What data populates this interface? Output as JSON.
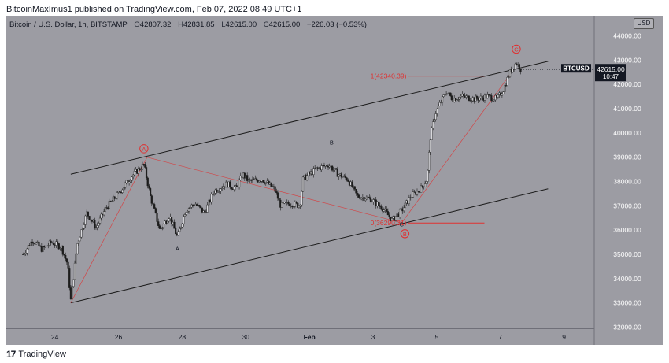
{
  "header": {
    "publisher_line": "BitcoinMaxImus1 published on TradingView.com, Feb 07, 2022 08:49 UTC+1"
  },
  "legend": {
    "symbol": "Bitcoin / U.S. Dollar, 1h, BITSTAMP",
    "open_label": "O",
    "open": "42807.32",
    "high_label": "H",
    "high": "42831.85",
    "low_label": "L",
    "low": "42615.00",
    "close_label": "C",
    "close": "42615.00",
    "change": "−226.03 (−0.53%)"
  },
  "currency": "USD",
  "price_tag": {
    "symbol": "BTCUSD",
    "price": "42615.00",
    "countdown": "10:47"
  },
  "footer": {
    "brand": "TradingView",
    "logo": "17"
  },
  "colors": {
    "background": "#9c9ca3",
    "candle": "#1c1c1c",
    "fib": "#e03030",
    "channel": "#1c1c1c",
    "zigzag": "#e03030"
  },
  "chart_data": {
    "type": "candlestick",
    "symbol": "BTCUSD",
    "interval": "1h",
    "ylim": [
      32000,
      44000
    ],
    "y_ticks": [
      32000,
      33000,
      34000,
      35000,
      36000,
      37000,
      38000,
      39000,
      40000,
      41000,
      42000,
      43000,
      44000
    ],
    "y_tick_labels": [
      "32000.00",
      "33000.00",
      "34000.00",
      "35000.00",
      "36000.00",
      "37000.00",
      "38000.00",
      "39000.00",
      "40000.00",
      "41000.00",
      "42000.00",
      "43000.00",
      "44000.00"
    ],
    "x_ticks": [
      {
        "label": "24",
        "day": 24
      },
      {
        "label": "26",
        "day": 26
      },
      {
        "label": "28",
        "day": 28
      },
      {
        "label": "30",
        "day": 30
      },
      {
        "label": "Feb",
        "day": 32
      },
      {
        "label": "3",
        "day": 34
      },
      {
        "label": "5",
        "day": 36
      },
      {
        "label": "7",
        "day": 38
      },
      {
        "label": "9",
        "day": 40
      }
    ],
    "price_path": [
      {
        "day": 23.0,
        "price": 35000
      },
      {
        "day": 23.3,
        "price": 35600
      },
      {
        "day": 23.6,
        "price": 35200
      },
      {
        "day": 23.9,
        "price": 35500
      },
      {
        "day": 24.2,
        "price": 35300
      },
      {
        "day": 24.4,
        "price": 34600
      },
      {
        "day": 24.5,
        "price": 33100
      },
      {
        "day": 24.7,
        "price": 35400
      },
      {
        "day": 25.0,
        "price": 36700
      },
      {
        "day": 25.3,
        "price": 36100
      },
      {
        "day": 25.6,
        "price": 36900
      },
      {
        "day": 26.0,
        "price": 37500
      },
      {
        "day": 26.4,
        "price": 38200
      },
      {
        "day": 26.8,
        "price": 38700
      },
      {
        "day": 27.0,
        "price": 37400
      },
      {
        "day": 27.3,
        "price": 36000
      },
      {
        "day": 27.6,
        "price": 36600
      },
      {
        "day": 27.85,
        "price": 35700
      },
      {
        "day": 28.1,
        "price": 36800
      },
      {
        "day": 28.4,
        "price": 37100
      },
      {
        "day": 28.7,
        "price": 36700
      },
      {
        "day": 29.0,
        "price": 37600
      },
      {
        "day": 29.4,
        "price": 37900
      },
      {
        "day": 29.7,
        "price": 37700
      },
      {
        "day": 29.9,
        "price": 38300
      },
      {
        "day": 30.1,
        "price": 38000
      },
      {
        "day": 30.5,
        "price": 38100
      },
      {
        "day": 30.9,
        "price": 37700
      },
      {
        "day": 31.1,
        "price": 37000
      },
      {
        "day": 31.4,
        "price": 37100
      },
      {
        "day": 31.7,
        "price": 37000
      },
      {
        "day": 31.8,
        "price": 38100
      },
      {
        "day": 32.2,
        "price": 38500
      },
      {
        "day": 32.6,
        "price": 38700
      },
      {
        "day": 32.9,
        "price": 38300
      },
      {
        "day": 33.2,
        "price": 38100
      },
      {
        "day": 33.5,
        "price": 37400
      },
      {
        "day": 33.9,
        "price": 37300
      },
      {
        "day": 34.3,
        "price": 36900
      },
      {
        "day": 34.6,
        "price": 36400
      },
      {
        "day": 34.9,
        "price": 36800
      },
      {
        "day": 35.2,
        "price": 37400
      },
      {
        "day": 35.5,
        "price": 37700
      },
      {
        "day": 35.7,
        "price": 38100
      },
      {
        "day": 35.8,
        "price": 39800
      },
      {
        "day": 35.95,
        "price": 40800
      },
      {
        "day": 36.1,
        "price": 41200
      },
      {
        "day": 36.3,
        "price": 41700
      },
      {
        "day": 36.5,
        "price": 41400
      },
      {
        "day": 36.8,
        "price": 41500
      },
      {
        "day": 37.2,
        "price": 41400
      },
      {
        "day": 37.6,
        "price": 41500
      },
      {
        "day": 37.9,
        "price": 41400
      },
      {
        "day": 38.1,
        "price": 41800
      },
      {
        "day": 38.3,
        "price": 42500
      },
      {
        "day": 38.5,
        "price": 42900
      },
      {
        "day": 38.65,
        "price": 42615
      }
    ],
    "channel_lines": [
      {
        "from": {
          "day": 24.5,
          "price": 38300
        },
        "to": {
          "day": 39.5,
          "price": 42950
        }
      },
      {
        "from": {
          "day": 24.5,
          "price": 33000
        },
        "to": {
          "day": 39.5,
          "price": 37700
        }
      }
    ],
    "fib_levels": [
      {
        "label": "1(42340.39)",
        "price": 42340.39
      },
      {
        "label": "0(36290.31)",
        "price": 36290.31
      }
    ],
    "wave_labels": [
      {
        "text": "A",
        "day": 26.8,
        "price": 39350,
        "circled": true
      },
      {
        "text": "A",
        "day": 27.85,
        "price": 35250,
        "circled": false
      },
      {
        "text": "B",
        "day": 32.7,
        "price": 39620,
        "circled": false
      },
      {
        "text": "C",
        "day": 34.9,
        "price": 36250,
        "circled": false
      },
      {
        "text": "B",
        "day": 35.0,
        "price": 35850,
        "circled": true
      },
      {
        "text": "C",
        "day": 38.5,
        "price": 43450,
        "circled": true
      }
    ],
    "zigzag_lines": [
      {
        "from": {
          "day": 24.5,
          "price": 33000
        },
        "to": {
          "day": 26.9,
          "price": 39000
        }
      },
      {
        "from": {
          "day": 26.9,
          "price": 39000
        },
        "to": {
          "day": 34.9,
          "price": 36300
        }
      },
      {
        "from": {
          "day": 34.9,
          "price": 36300
        },
        "to": {
          "day": 38.3,
          "price": 42400
        }
      }
    ]
  }
}
